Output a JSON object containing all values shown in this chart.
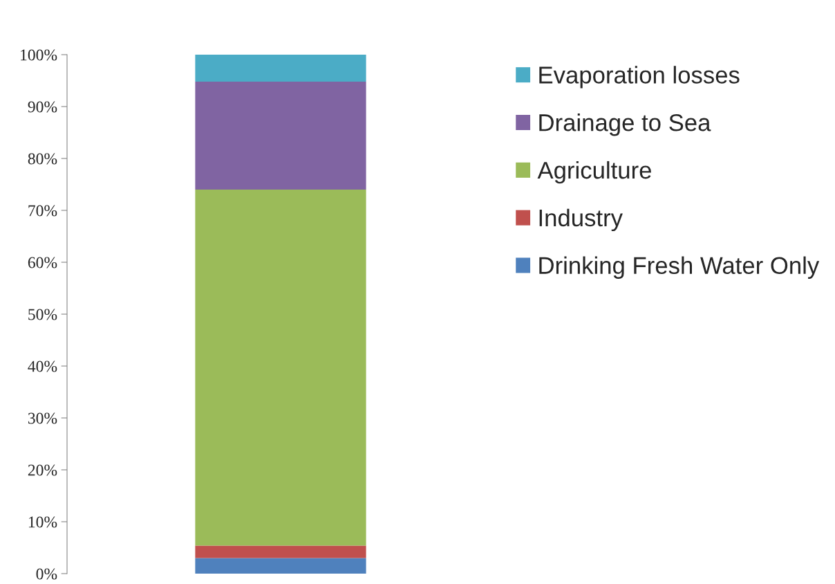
{
  "chart_data": {
    "type": "bar",
    "stacked": true,
    "categories": [
      null
    ],
    "series": [
      {
        "name": "Drinking Fresh Water Only",
        "color": "#4f81bd",
        "values": [
          3
        ]
      },
      {
        "name": "Industry",
        "color": "#c0504d",
        "values": [
          2.4
        ]
      },
      {
        "name": "Agriculture",
        "color": "#9bbb59",
        "values": [
          68.6
        ]
      },
      {
        "name": "Drainage to Sea",
        "color": "#8064a2",
        "values": [
          20.8
        ]
      },
      {
        "name": "Evaporation losses",
        "color": "#4bacc6",
        "values": [
          5.2
        ]
      }
    ],
    "ylim": [
      0,
      100
    ],
    "yticks": [
      {
        "value": 0,
        "label": "0%"
      },
      {
        "value": 10,
        "label": "10%"
      },
      {
        "value": 20,
        "label": "20%"
      },
      {
        "value": 30,
        "label": "30%"
      },
      {
        "value": 40,
        "label": "40%"
      },
      {
        "value": 50,
        "label": "50%"
      },
      {
        "value": 60,
        "label": "60%"
      },
      {
        "value": 70,
        "label": "70%"
      },
      {
        "value": 80,
        "label": "80%"
      },
      {
        "value": 90,
        "label": "90%"
      },
      {
        "value": 100,
        "label": "100%"
      }
    ],
    "grid": false,
    "legend": "right",
    "tick_labels": "y"
  }
}
